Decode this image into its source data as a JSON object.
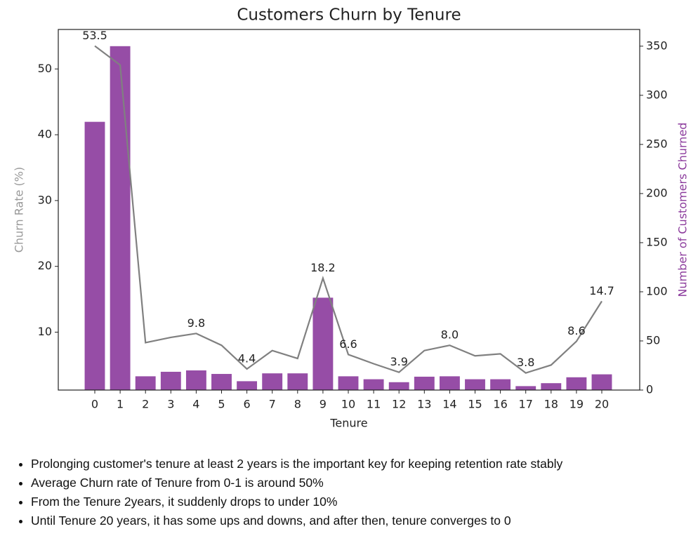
{
  "chart_data": {
    "type": "bar-line",
    "title": "Customers Churn by Tenure",
    "x_label": "Tenure",
    "y_label": "Churn Rate (%)",
    "y2_label": "Number of Customers Churned",
    "categories": [
      "0",
      "1",
      "2",
      "3",
      "4",
      "5",
      "6",
      "7",
      "8",
      "9",
      "10",
      "11",
      "12",
      "13",
      "14",
      "15",
      "16",
      "17",
      "18",
      "19",
      "20"
    ],
    "series": [
      {
        "type": "bar",
        "axis": "y2",
        "color": "#8b3a9c",
        "values": [
          273,
          350,
          14,
          18.6,
          20,
          16.4,
          9,
          17,
          17,
          94,
          14,
          11,
          8,
          13.6,
          14,
          11,
          11,
          4,
          7,
          13,
          16
        ]
      },
      {
        "type": "line",
        "axis": "y",
        "color": "#808080",
        "values": [
          53.5,
          50.6,
          8.4,
          9.2,
          9.8,
          8.0,
          4.4,
          7.2,
          6.0,
          18.2,
          6.6,
          5.2,
          3.9,
          7.2,
          8.0,
          6.4,
          6.7,
          3.8,
          5.0,
          8.6,
          14.7
        ],
        "value_labels": [
          "53.5",
          null,
          null,
          null,
          "9.8",
          null,
          "4.4",
          null,
          null,
          "18.2",
          "6.6",
          null,
          "3.9",
          null,
          "8.0",
          null,
          null,
          "3.8",
          null,
          "8.6",
          "14.7"
        ]
      }
    ],
    "ylim": [
      1.2,
      56
    ],
    "yticks": [
      10,
      20,
      30,
      40,
      50
    ],
    "y2lim": [
      0,
      367
    ],
    "y2ticks": [
      0,
      50,
      100,
      150,
      200,
      250,
      300,
      350
    ]
  },
  "notes": [
    "Prolonging customer's tenure at least 2 years is the important key for keeping retention rate stably",
    "Average Churn rate of Tenure from 0-1 is around 50%",
    "From the Tenure 2years, it suddenly drops to under 10%",
    "Until Tenure 20 years, it has some ups and downs, and after then, tenure converges to 0"
  ]
}
